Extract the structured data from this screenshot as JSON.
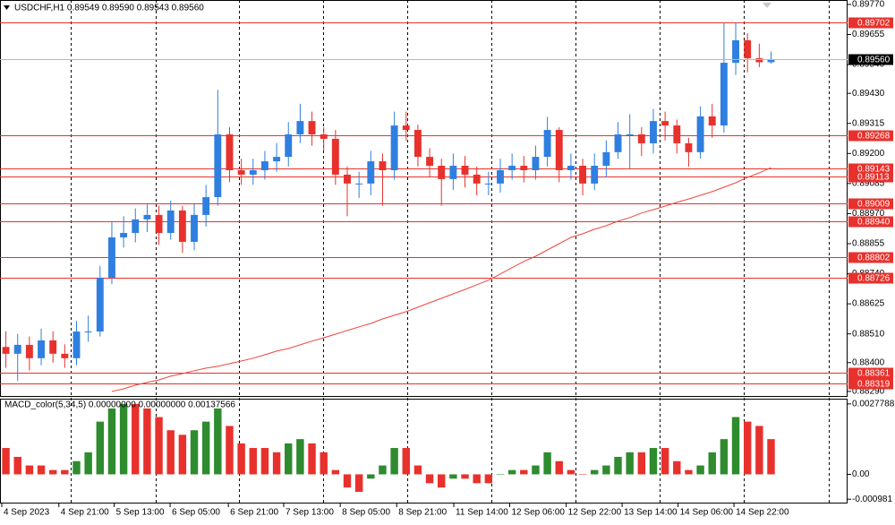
{
  "chart_data": [
    {
      "type": "candlestick",
      "title": "USDCHF,H1  0.89549 0.89590 0.89543 0.89560",
      "xlim": [
        0,
        72
      ],
      "ylim": [
        0.88269,
        0.89787
      ],
      "yticks": [
        {
          "value": 0.8977,
          "label": "0.89770"
        },
        0.89655,
        {
          "value": 0.8954,
          "label": "0.89540"
        },
        {
          "value": 0.8943,
          "label": "0.89430"
        },
        0.89315,
        {
          "value": 0.892,
          "label": "0.89200"
        },
        0.89085,
        {
          "value": 0.8897,
          "label": "0.88970"
        },
        0.88855,
        {
          "value": 0.8874,
          "label": "0.88740"
        },
        0.88625,
        {
          "value": 0.8851,
          "label": "0.88510"
        },
        {
          "value": 0.884,
          "label": "0.88400"
        },
        {
          "value": 0.8829,
          "label": "0.88290"
        }
      ],
      "xticks": [
        {
          "value": 0.15,
          "label": "4 Sep 2023"
        },
        {
          "value": 5.0,
          "label": "4 Sep 21:00"
        },
        {
          "value": 9.7,
          "label": "5 Sep 13:00"
        },
        {
          "value": 14.45,
          "label": "6 Sep 05:00"
        },
        {
          "value": 19.4,
          "label": "6 Sep 21:00"
        },
        {
          "value": 24.1,
          "label": "7 Sep 13:00"
        },
        {
          "value": 28.9,
          "label": "8 Sep 05:00"
        },
        {
          "value": 33.7,
          "label": "8 Sep 21:00"
        },
        {
          "value": 38.55,
          "label": "11 Sep 14:00"
        },
        {
          "value": 43.3,
          "label": "12 Sep 06:00"
        },
        {
          "value": 48.1,
          "label": "12 Sep 22:00"
        },
        {
          "value": 52.85,
          "label": "13 Sep 14:00"
        },
        {
          "value": 57.6,
          "label": "14 Sep 06:00"
        },
        {
          "value": 62.35,
          "label": "14 Sep 22:00"
        }
      ],
      "separators": [
        6.0,
        13.2,
        20.3,
        27.45,
        34.6,
        41.75,
        48.9,
        56.05,
        63.2,
        70.4
      ],
      "up_color": "#2f7fe0",
      "down_color": "#e8312c",
      "open": [
        0.8846,
        0.88434,
        0.88468,
        0.88417,
        0.88485,
        0.88434,
        0.88417,
        0.88519,
        0.88519,
        0.88725,
        0.88879,
        0.88896,
        0.88948,
        0.88965,
        0.88896,
        0.88982,
        0.88862,
        0.88965,
        0.89033,
        0.89273,
        0.89136,
        0.89119,
        0.89136,
        0.8917,
        0.89187,
        0.89273,
        0.89324,
        0.89273,
        0.89256,
        0.89119,
        0.89085,
        0.89085,
        0.8917,
        0.89136,
        0.89307,
        0.8929,
        0.89187,
        0.89153,
        0.89102,
        0.89153,
        0.89119,
        0.89085,
        0.89085,
        0.89136,
        0.89153,
        0.89136,
        0.89187,
        0.8929,
        0.89136,
        0.89153,
        0.89085,
        0.89153,
        0.89205,
        0.89273,
        0.89273,
        0.89239,
        0.89324,
        0.89307,
        0.89239,
        0.89205,
        0.89342,
        0.89307,
        0.89547,
        0.89633,
        0.89564,
        0.89549
      ],
      "high": [
        0.8852,
        0.8851,
        0.885,
        0.8853,
        0.8852,
        0.8847,
        0.8856,
        0.8858,
        0.8877,
        0.8894,
        0.8896,
        0.8899,
        0.8901,
        0.89,
        0.8902,
        0.89,
        0.8901,
        0.8908,
        0.89443,
        0.893,
        0.8918,
        0.8918,
        0.8921,
        0.8924,
        0.8932,
        0.8939,
        0.8936,
        0.893,
        0.8929,
        0.8915,
        0.8913,
        0.8921,
        0.892,
        0.8936,
        0.8936,
        0.8931,
        0.8922,
        0.8918,
        0.892,
        0.8919,
        0.8915,
        0.8913,
        0.8918,
        0.892,
        0.8919,
        0.8923,
        0.8934,
        0.893,
        0.892,
        0.8918,
        0.892,
        0.8925,
        0.8932,
        0.8935,
        0.893,
        0.8937,
        0.8936,
        0.8933,
        0.8926,
        0.8938,
        0.8939,
        0.897,
        0.89702,
        0.8966,
        0.8962,
        0.8959
      ],
      "low": [
        0.8838,
        0.8833,
        0.8837,
        0.8839,
        0.884,
        0.8838,
        0.8839,
        0.8848,
        0.885,
        0.887,
        0.8884,
        0.8886,
        0.889,
        0.8885,
        0.8887,
        0.8882,
        0.8883,
        0.8892,
        0.89,
        0.8909,
        0.8908,
        0.8908,
        0.891,
        0.8913,
        0.8915,
        0.8924,
        0.8923,
        0.8921,
        0.8908,
        0.8896,
        0.8903,
        0.8904,
        0.89,
        0.891,
        0.8925,
        0.8915,
        0.8911,
        0.89,
        0.8906,
        0.8907,
        0.8904,
        0.8904,
        0.8905,
        0.891,
        0.8909,
        0.891,
        0.8915,
        0.8909,
        0.891,
        0.8904,
        0.8906,
        0.8911,
        0.8918,
        0.8914,
        0.8919,
        0.892,
        0.8925,
        0.892,
        0.8915,
        0.8918,
        0.8926,
        0.8928,
        0.895,
        0.8951,
        0.8953,
        0.89543
      ],
      "close": [
        0.88434,
        0.88468,
        0.88417,
        0.88485,
        0.88434,
        0.88417,
        0.88519,
        0.88519,
        0.88725,
        0.88879,
        0.88896,
        0.88948,
        0.88965,
        0.88896,
        0.88982,
        0.88862,
        0.88965,
        0.89033,
        0.89273,
        0.89136,
        0.89119,
        0.89136,
        0.8917,
        0.89187,
        0.89273,
        0.89324,
        0.89273,
        0.89256,
        0.89119,
        0.89085,
        0.89085,
        0.8917,
        0.89136,
        0.89307,
        0.8929,
        0.89187,
        0.89153,
        0.89102,
        0.89153,
        0.89119,
        0.89085,
        0.89085,
        0.89136,
        0.89153,
        0.89136,
        0.89187,
        0.8929,
        0.89136,
        0.89153,
        0.89085,
        0.89153,
        0.89205,
        0.89273,
        0.89273,
        0.89239,
        0.89324,
        0.89307,
        0.89239,
        0.89205,
        0.89342,
        0.89307,
        0.89547,
        0.89633,
        0.89564,
        0.89549,
        0.8956
      ],
      "ma": {
        "color": "#f0443c",
        "values": [
          null,
          null,
          null,
          null,
          null,
          null,
          null,
          null,
          null,
          0.8829,
          0.883,
          0.88314,
          0.88324,
          0.88334,
          0.88348,
          0.88358,
          0.88369,
          0.88379,
          0.88386,
          0.88396,
          0.88406,
          0.88417,
          0.8843,
          0.88444,
          0.88454,
          0.88468,
          0.88482,
          0.88495,
          0.88509,
          0.88523,
          0.88537,
          0.8855,
          0.88567,
          0.88581,
          0.88595,
          0.88612,
          0.88629,
          0.88646,
          0.88663,
          0.8868,
          0.88698,
          0.88715,
          0.88739,
          0.88763,
          0.88787,
          0.88807,
          0.88831,
          0.88855,
          0.88879,
          0.88893,
          0.8891,
          0.88924,
          0.88941,
          0.88955,
          0.88972,
          0.88985,
          0.88999,
          0.89013,
          0.89026,
          0.8904,
          0.89054,
          0.89071,
          0.89088,
          0.89109,
          0.89126,
          0.89146
        ]
      },
      "level_color": "#e8312c",
      "levels": [
        0.89702,
        0.89268,
        0.89143,
        0.89113,
        0.89009,
        {
          "value": 0.8894,
          "label": "0.88940"
        },
        0.88802,
        0.88726,
        0.88361,
        0.88319
      ],
      "current_price": {
        "value": 0.8956,
        "label": "0.89560"
      },
      "current_color": "#b8b8b8"
    },
    {
      "type": "bar",
      "title": "MACD_color(5,34,5) 0.00000000 0.00000000 0.00137566",
      "xlim": [
        0,
        72
      ],
      "ylim": [
        -0.00115,
        0.00295
      ],
      "yticks": [
        0.0027788,
        {
          "value": 0,
          "label": "0.00"
        },
        -0.000981
      ],
      "up_color": "#2e8b2e",
      "down_color": "#e8312c",
      "values": [
        0.00104,
        0.00069,
        0.00035,
        0.00035,
        0.00017,
        0.00017,
        0.00052,
        0.00087,
        0.00208,
        0.0026,
        0.00278,
        0.00278,
        0.0026,
        0.00226,
        0.00174,
        0.00156,
        0.00174,
        0.00208,
        0.0026,
        0.00191,
        0.00122,
        0.00104,
        0.00104,
        0.00087,
        0.00122,
        0.00139,
        0.00122,
        0.00087,
        0.00017,
        -0.00052,
        -0.00069,
        -0.00017,
        0.00035,
        0.00104,
        0.00104,
        0.00035,
        -0.00035,
        -0.00052,
        -0.00017,
        -0.00017,
        -0.00035,
        -0.00035,
        0,
        0.00017,
        0.00017,
        0.00035,
        0.00087,
        0.00052,
        0.00017,
        0,
        0.00017,
        0.00035,
        0.00069,
        0.00087,
        0.00087,
        0.00104,
        0.00104,
        0.00052,
        0.00017,
        0.00035,
        0.00087,
        0.00139,
        0.00226,
        0.00208,
        0.00191,
        0.00139
      ]
    }
  ]
}
